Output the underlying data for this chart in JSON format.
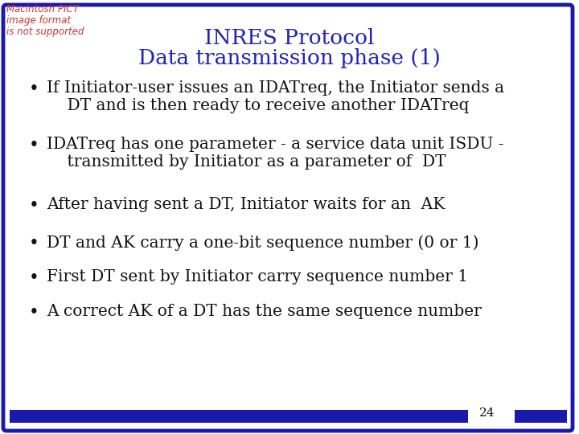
{
  "title_line1": "INRES Protocol",
  "title_line2": "Data transmission phase (1)",
  "title_color": "#2222BB",
  "title_fontsize": 19,
  "bullet_points": [
    [
      "If Initiator-user issues an IDATreq, the Initiator sends a",
      "    DT and is then ready to receive another IDATreq"
    ],
    [
      "IDATreq has one parameter - a service data unit ISDU -",
      "    transmitted by Initiator as a parameter of  DT"
    ],
    [
      "After having sent a DT, Initiator waits for an  AK"
    ],
    [
      "DT and AK carry a one-bit sequence number (0 or 1)"
    ],
    [
      "First DT sent by Initiator carry sequence number 1"
    ],
    [
      "A correct AK of a DT has the same sequence number"
    ]
  ],
  "bullet_fontsize": 14.5,
  "bullet_color": "#111111",
  "background_color": "#FFFFFF",
  "border_color": "#1a1aAA",
  "border_linewidth": 3.5,
  "page_number": "24",
  "bottom_bar_color": "#1a1aAA",
  "watermark_lines": [
    "Macintosh PICT",
    "image format",
    "is not supported"
  ],
  "watermark_color": "#CC3333",
  "watermark_fontsize": 8.5
}
